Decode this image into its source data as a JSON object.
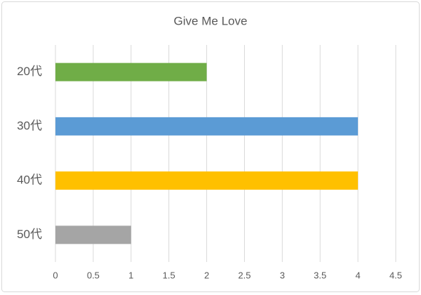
{
  "chart_data": {
    "type": "hbar",
    "title": "Give Me Love",
    "categories": [
      "20代",
      "30代",
      "40代",
      "50代"
    ],
    "values": [
      2,
      4,
      4,
      1
    ],
    "colors": [
      "#70ad47",
      "#5b9bd5",
      "#ffc000",
      "#a5a5a5"
    ],
    "xlim": [
      0,
      4.5
    ],
    "xticks": [
      0,
      0.5,
      1,
      1.5,
      2,
      2.5,
      3,
      3.5,
      4,
      4.5
    ],
    "grid": true
  }
}
